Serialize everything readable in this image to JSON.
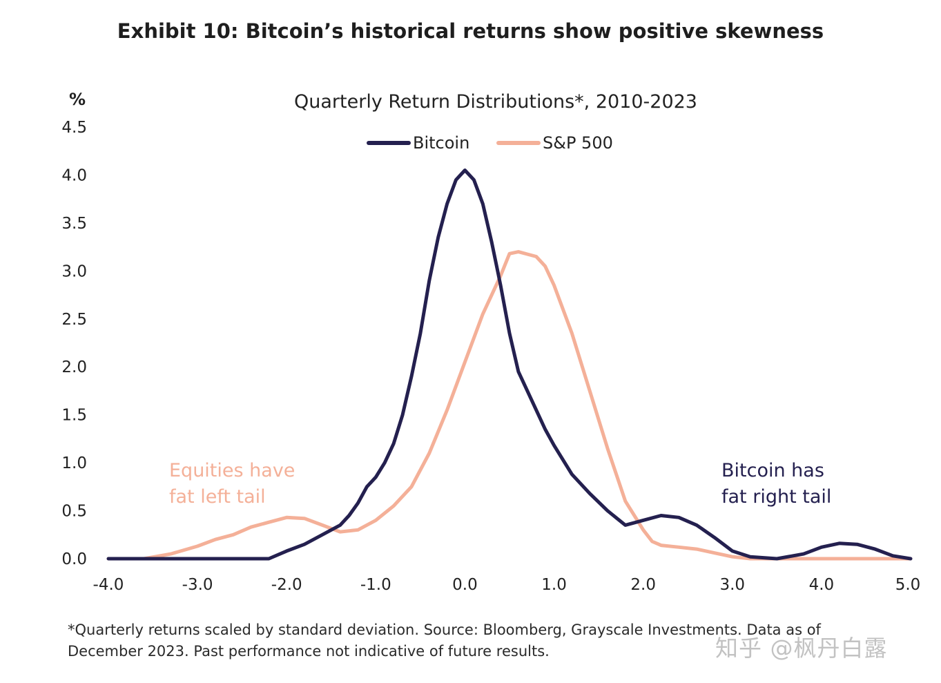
{
  "header": {
    "exhibit_title": "Exhibit 10: Bitcoin’s historical returns show positive skewness"
  },
  "chart_data": {
    "type": "line",
    "title": "Quarterly Return Distributions*, 2010-2023",
    "xlabel": "",
    "ylabel": "%",
    "xlim": [
      -4.0,
      5.0
    ],
    "ylim": [
      0.0,
      4.5
    ],
    "x_ticks": [
      "-4.0",
      "-3.0",
      "-2.0",
      "-1.0",
      "0.0",
      "1.0",
      "2.0",
      "3.0",
      "4.0",
      "5.0"
    ],
    "x_tick_values": [
      -4,
      -3,
      -2,
      -1,
      0,
      1,
      2,
      3,
      4,
      5
    ],
    "y_ticks": [
      "0.0",
      "0.5",
      "1.0",
      "1.5",
      "2.0",
      "2.5",
      "3.0",
      "3.5",
      "4.0",
      "4.5"
    ],
    "y_tick_values": [
      0,
      0.5,
      1,
      1.5,
      2,
      2.5,
      3,
      3.5,
      4,
      4.5
    ],
    "grid": false,
    "legend_position": "top-center",
    "series": [
      {
        "name": "Bitcoin",
        "color": "#24204f",
        "x": [
          -4.0,
          -3.5,
          -3.0,
          -2.5,
          -2.2,
          -2.0,
          -1.8,
          -1.6,
          -1.4,
          -1.3,
          -1.2,
          -1.1,
          -1.0,
          -0.9,
          -0.8,
          -0.7,
          -0.6,
          -0.5,
          -0.4,
          -0.3,
          -0.2,
          -0.1,
          0.0,
          0.1,
          0.2,
          0.3,
          0.4,
          0.5,
          0.6,
          0.7,
          0.8,
          0.9,
          1.0,
          1.2,
          1.4,
          1.6,
          1.8,
          2.0,
          2.2,
          2.4,
          2.6,
          2.8,
          3.0,
          3.2,
          3.5,
          3.8,
          4.0,
          4.2,
          4.4,
          4.6,
          4.8,
          5.0
        ],
        "values": [
          0.0,
          0.0,
          0.0,
          0.0,
          0.0,
          0.08,
          0.15,
          0.25,
          0.35,
          0.45,
          0.58,
          0.75,
          0.85,
          1.0,
          1.2,
          1.5,
          1.9,
          2.35,
          2.9,
          3.35,
          3.7,
          3.95,
          4.05,
          3.95,
          3.7,
          3.3,
          2.85,
          2.35,
          1.95,
          1.75,
          1.55,
          1.35,
          1.18,
          0.88,
          0.68,
          0.5,
          0.35,
          0.4,
          0.45,
          0.43,
          0.35,
          0.22,
          0.08,
          0.02,
          0.0,
          0.05,
          0.12,
          0.16,
          0.15,
          0.1,
          0.03,
          0.0
        ]
      },
      {
        "name": "S&P 500",
        "color": "#f4b098",
        "x": [
          -4.0,
          -3.6,
          -3.3,
          -3.0,
          -2.8,
          -2.6,
          -2.4,
          -2.2,
          -2.0,
          -1.8,
          -1.6,
          -1.4,
          -1.2,
          -1.0,
          -0.8,
          -0.6,
          -0.4,
          -0.2,
          0.0,
          0.2,
          0.4,
          0.5,
          0.6,
          0.8,
          0.9,
          1.0,
          1.2,
          1.4,
          1.6,
          1.8,
          1.9,
          2.0,
          2.1,
          2.2,
          2.4,
          2.6,
          2.8,
          3.0,
          3.2,
          3.5,
          4.0,
          4.5,
          5.0
        ],
        "values": [
          0.0,
          0.0,
          0.05,
          0.13,
          0.2,
          0.25,
          0.33,
          0.38,
          0.43,
          0.42,
          0.35,
          0.28,
          0.3,
          0.4,
          0.55,
          0.75,
          1.1,
          1.55,
          2.05,
          2.55,
          2.95,
          3.18,
          3.2,
          3.15,
          3.05,
          2.85,
          2.35,
          1.75,
          1.15,
          0.6,
          0.45,
          0.3,
          0.18,
          0.14,
          0.12,
          0.1,
          0.06,
          0.02,
          0.0,
          0.0,
          0.0,
          0.0,
          0.0
        ]
      }
    ],
    "annotations": [
      {
        "lines": [
          "Equities have",
          "fat left tail"
        ],
        "color": "#f4b098"
      },
      {
        "lines": [
          "Bitcoin has",
          "fat right tail"
        ],
        "color": "#24204f"
      }
    ]
  },
  "footer": {
    "footnote_line1": "*Quarterly returns scaled by standard deviation. Source: Bloomberg, Grayscale Investments. Data as of",
    "footnote_line2": "December 2023. Past performance not indicative of future results.",
    "watermark": "知乎 @枫丹白露"
  }
}
